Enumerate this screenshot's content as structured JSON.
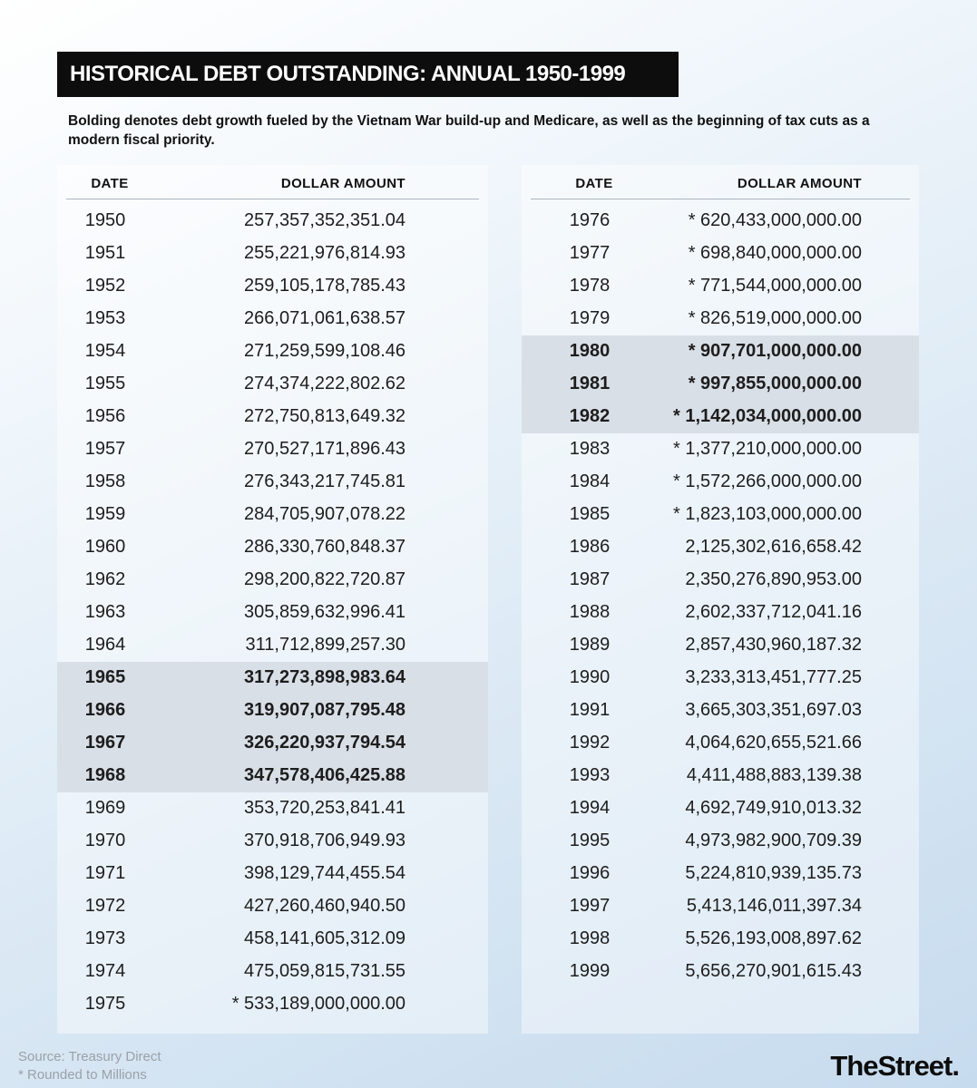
{
  "title": "HISTORICAL DEBT OUTSTANDING: ANNUAL 1950-1999",
  "subtitle": "Bolding denotes debt growth fueled by the Vietnam War build-up and Medicare, as well as the beginning of tax cuts as a modern fiscal priority.",
  "columns": {
    "date": "DATE",
    "amount": "DOLLAR AMOUNT"
  },
  "footer": {
    "source": "Source: Treasury Direct",
    "note": "* Rounded to Millions",
    "brand": "TheStreet."
  },
  "colors": {
    "title_bar_bg": "#0d0d0d",
    "title_text": "#ffffff",
    "highlight_row_bg": "#d9dfe7",
    "page_gradient_start": "#ffffff",
    "page_gradient_end": "#c6dbee",
    "body_text": "#1d1d1d",
    "muted_text": "#9aa1a9"
  },
  "chart_data": {
    "type": "table",
    "title": "Historical Debt Outstanding: Annual 1950-1999",
    "columns": [
      "DATE",
      "DOLLAR AMOUNT"
    ],
    "bold_note": "Bolding denotes debt growth fueled by the Vietnam War build-up and Medicare, as well as the beginning of tax cuts as a modern fiscal priority.",
    "footnote": "* Rounded to Millions",
    "source": "Treasury Direct",
    "tables": [
      {
        "rows": [
          {
            "year": "1950",
            "amount": "257,357,352,351.04",
            "bold": false
          },
          {
            "year": "1951",
            "amount": "255,221,976,814.93",
            "bold": false
          },
          {
            "year": "1952",
            "amount": "259,105,178,785.43",
            "bold": false
          },
          {
            "year": "1953",
            "amount": "266,071,061,638.57",
            "bold": false
          },
          {
            "year": "1954",
            "amount": "271,259,599,108.46",
            "bold": false
          },
          {
            "year": "1955",
            "amount": "274,374,222,802.62",
            "bold": false
          },
          {
            "year": "1956",
            "amount": "272,750,813,649.32",
            "bold": false
          },
          {
            "year": "1957",
            "amount": "270,527,171,896.43",
            "bold": false
          },
          {
            "year": "1958",
            "amount": "276,343,217,745.81",
            "bold": false
          },
          {
            "year": "1959",
            "amount": "284,705,907,078.22",
            "bold": false
          },
          {
            "year": "1960",
            "amount": "286,330,760,848.37",
            "bold": false
          },
          {
            "year": "1962",
            "amount": "298,200,822,720.87",
            "bold": false
          },
          {
            "year": "1963",
            "amount": "305,859,632,996.41",
            "bold": false
          },
          {
            "year": "1964",
            "amount": "311,712,899,257.30",
            "bold": false
          },
          {
            "year": "1965",
            "amount": "317,273,898,983.64",
            "bold": true
          },
          {
            "year": "1966",
            "amount": "319,907,087,795.48",
            "bold": true
          },
          {
            "year": "1967",
            "amount": "326,220,937,794.54",
            "bold": true
          },
          {
            "year": "1968",
            "amount": "347,578,406,425.88",
            "bold": true
          },
          {
            "year": "1969",
            "amount": "353,720,253,841.41",
            "bold": false
          },
          {
            "year": "1970",
            "amount": "370,918,706,949.93",
            "bold": false
          },
          {
            "year": "1971",
            "amount": "398,129,744,455.54",
            "bold": false
          },
          {
            "year": "1972",
            "amount": "427,260,460,940.50",
            "bold": false
          },
          {
            "year": "1973",
            "amount": "458,141,605,312.09",
            "bold": false
          },
          {
            "year": "1974",
            "amount": "475,059,815,731.55",
            "bold": false
          },
          {
            "year": "1975",
            "amount": "* 533,189,000,000.00",
            "bold": false
          }
        ]
      },
      {
        "rows": [
          {
            "year": "1976",
            "amount": "* 620,433,000,000.00",
            "bold": false
          },
          {
            "year": "1977",
            "amount": "* 698,840,000,000.00",
            "bold": false
          },
          {
            "year": "1978",
            "amount": "* 771,544,000,000.00",
            "bold": false
          },
          {
            "year": "1979",
            "amount": "* 826,519,000,000.00",
            "bold": false
          },
          {
            "year": "1980",
            "amount": "* 907,701,000,000.00",
            "bold": true
          },
          {
            "year": "1981",
            "amount": "* 997,855,000,000.00",
            "bold": true
          },
          {
            "year": "1982",
            "amount": "* 1,142,034,000,000.00",
            "bold": true
          },
          {
            "year": "1983",
            "amount": "* 1,377,210,000,000.00",
            "bold": false
          },
          {
            "year": "1984",
            "amount": "* 1,572,266,000,000.00",
            "bold": false
          },
          {
            "year": "1985",
            "amount": "* 1,823,103,000,000.00",
            "bold": false
          },
          {
            "year": "1986",
            "amount": "2,125,302,616,658.42",
            "bold": false
          },
          {
            "year": "1987",
            "amount": "2,350,276,890,953.00",
            "bold": false
          },
          {
            "year": "1988",
            "amount": "2,602,337,712,041.16",
            "bold": false
          },
          {
            "year": "1989",
            "amount": "2,857,430,960,187.32",
            "bold": false
          },
          {
            "year": "1990",
            "amount": "3,233,313,451,777.25",
            "bold": false
          },
          {
            "year": "1991",
            "amount": "3,665,303,351,697.03",
            "bold": false
          },
          {
            "year": "1992",
            "amount": "4,064,620,655,521.66",
            "bold": false
          },
          {
            "year": "1993",
            "amount": "4,411,488,883,139.38",
            "bold": false
          },
          {
            "year": "1994",
            "amount": "4,692,749,910,013.32",
            "bold": false
          },
          {
            "year": "1995",
            "amount": "4,973,982,900,709.39",
            "bold": false
          },
          {
            "year": "1996",
            "amount": "5,224,810,939,135.73",
            "bold": false
          },
          {
            "year": "1997",
            "amount": "5,413,146,011,397.34",
            "bold": false
          },
          {
            "year": "1998",
            "amount": "5,526,193,008,897.62",
            "bold": false
          },
          {
            "year": "1999",
            "amount": "5,656,270,901,615.43",
            "bold": false
          }
        ]
      }
    ]
  }
}
